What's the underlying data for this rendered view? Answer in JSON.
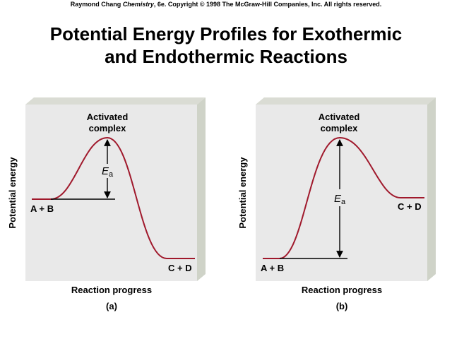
{
  "credit": {
    "author": "Raymond Chang",
    "book": "Chemistry",
    "rest": ", 6e.  Copyright © 1998 The McGraw-Hill Companies, Inc. All rights reserved."
  },
  "title": {
    "line1": "Potential Energy Profiles for Exothermic",
    "line2": "and Endothermic Reactions"
  },
  "panels": [
    {
      "id": "a",
      "caption": "(a)",
      "ylabel": "Potential energy",
      "xlabel": "Reaction progress",
      "peak_label_1": "Activated",
      "peak_label_2": "complex",
      "ea_label": "E",
      "ea_sub": "a",
      "reactants": "A + B",
      "products": "C + D"
    },
    {
      "id": "b",
      "caption": "(b)",
      "ylabel": "Potential energy",
      "xlabel": "Reaction progress",
      "peak_label_1": "Activated",
      "peak_label_2": "complex",
      "ea_label": "E",
      "ea_sub": "a",
      "reactants": "A + B",
      "products": "C + D"
    }
  ],
  "colors": {
    "panel": "#e9e9e9",
    "panel_side": "#cfd3c8",
    "panel_top": "#dadcd4",
    "curve": "#a0192c",
    "line": "#000000"
  }
}
